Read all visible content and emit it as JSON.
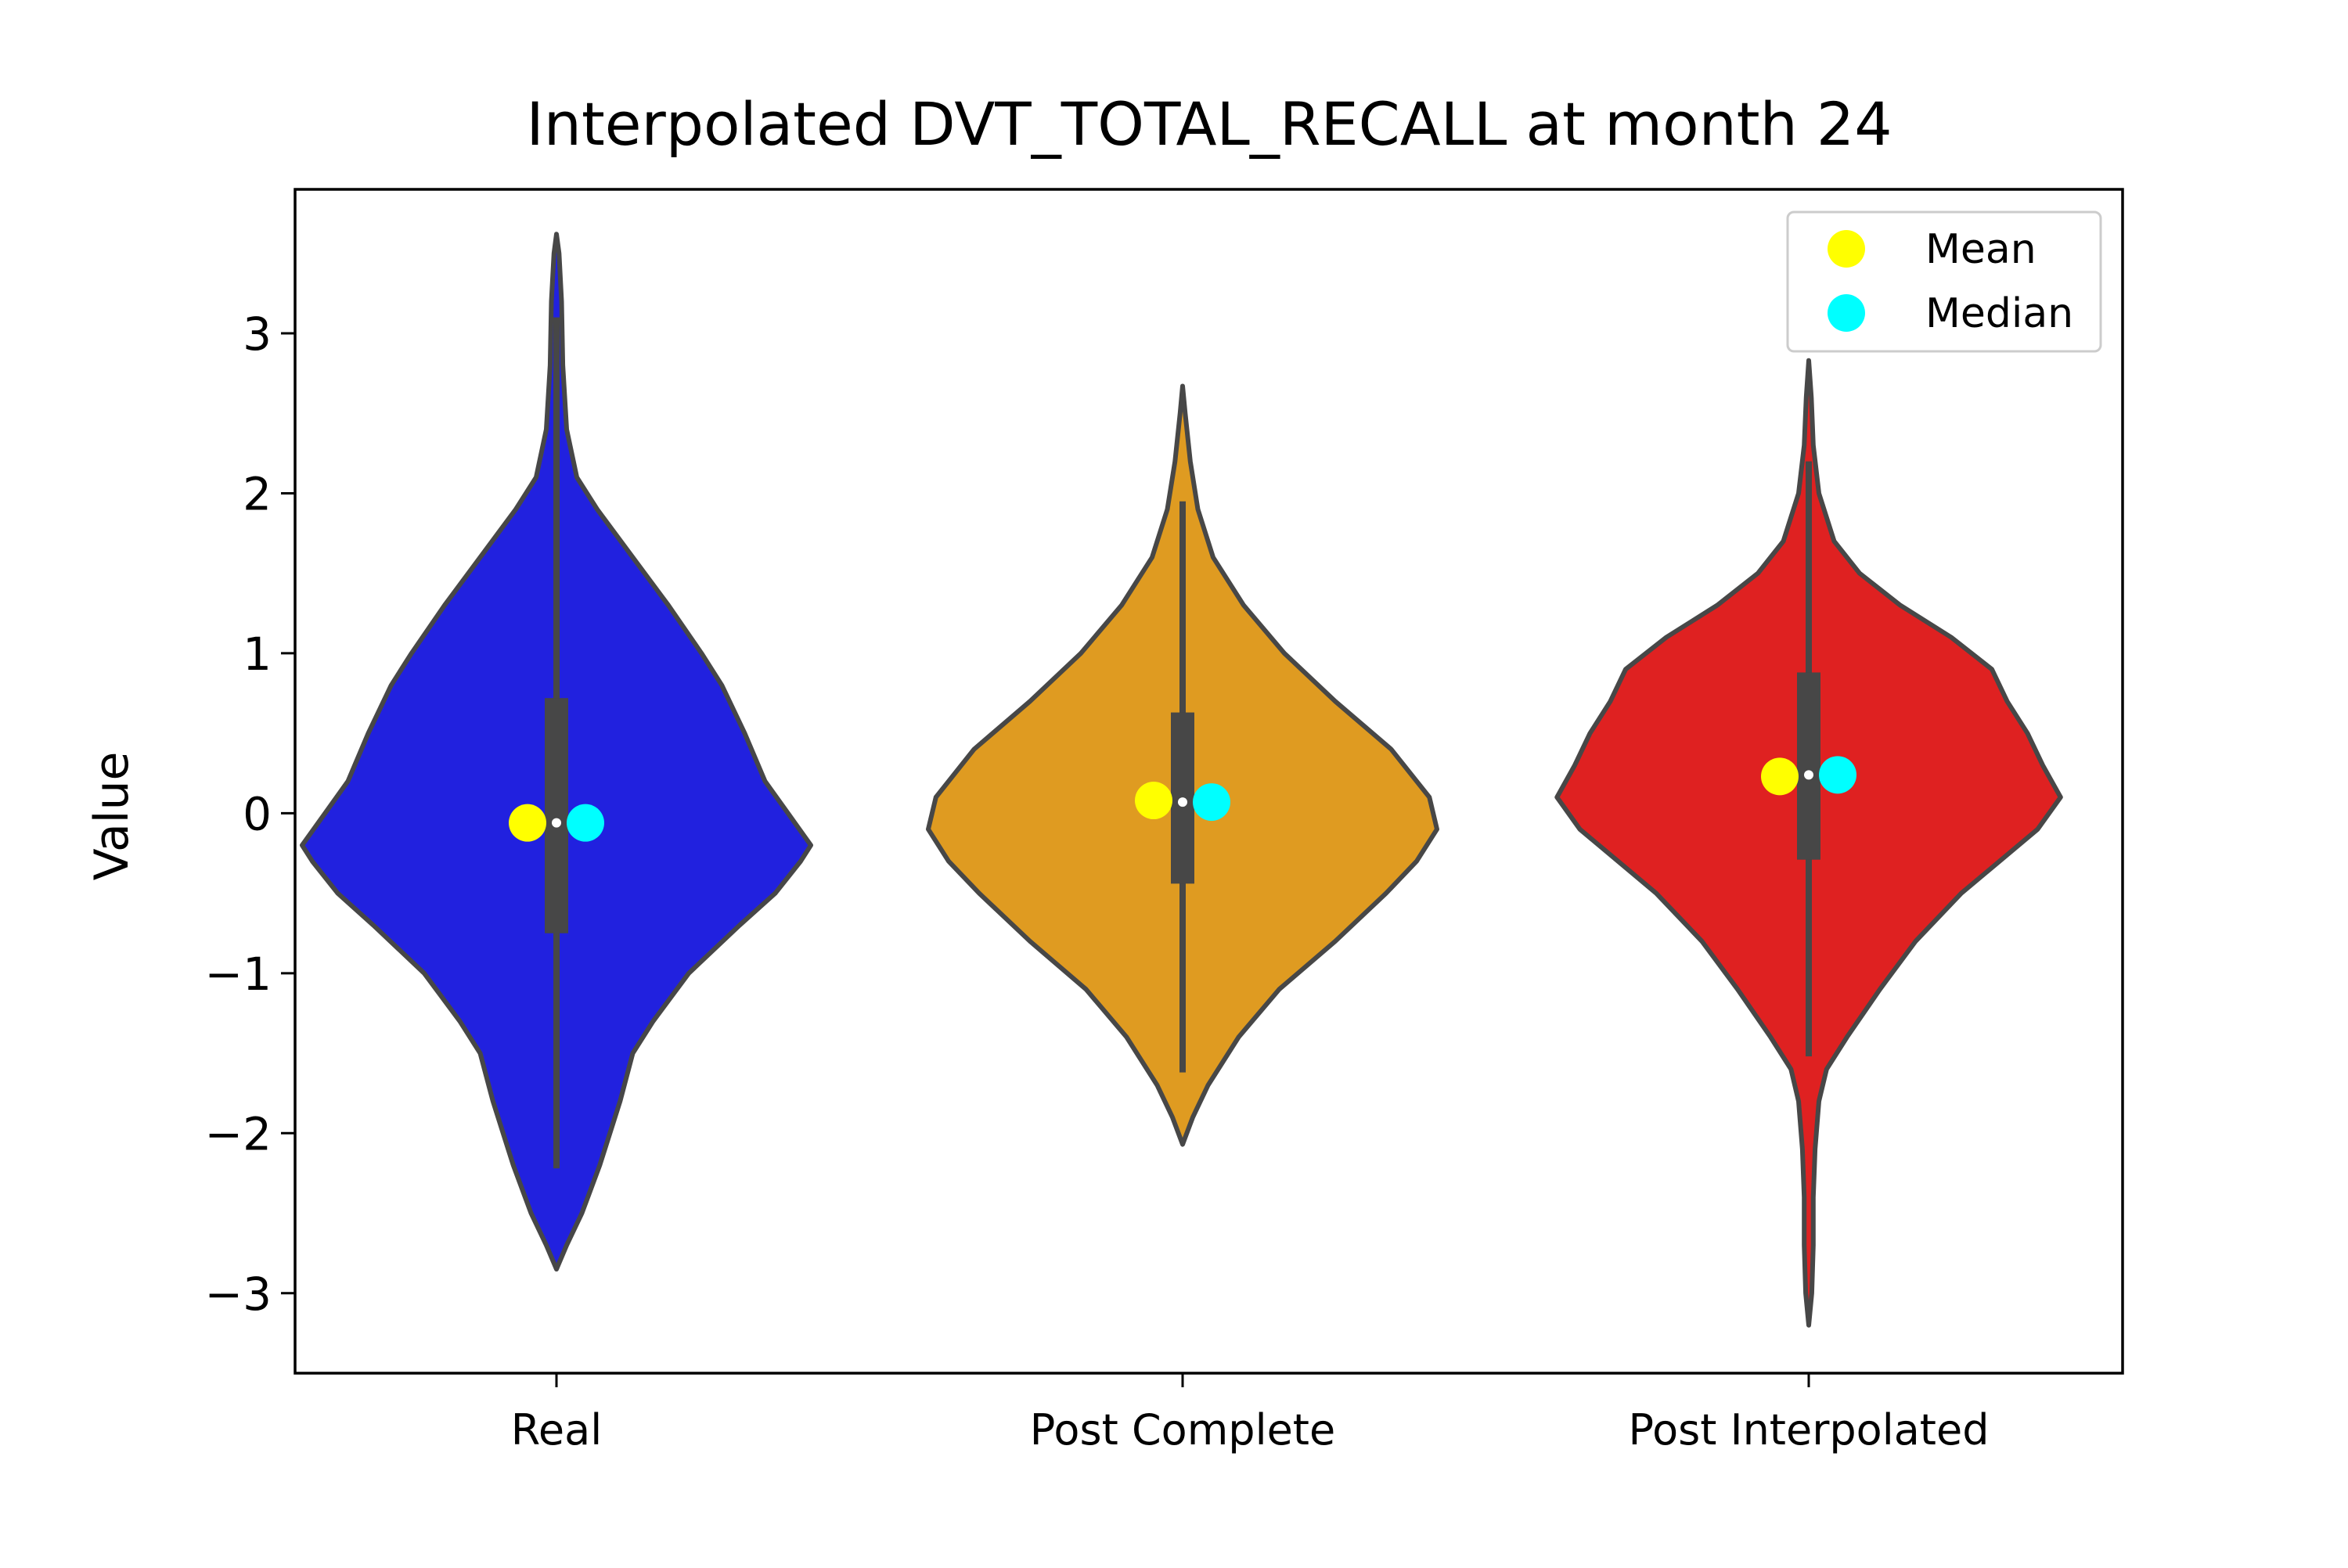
{
  "chart_data": {
    "type": "violin",
    "title": "Interpolated DVT_TOTAL_RECALL at month 24",
    "xlabel": "",
    "ylabel": "Value",
    "ylim": [
      -3.5,
      3.9
    ],
    "yticks": [
      -3,
      -2,
      -1,
      0,
      1,
      2,
      3
    ],
    "ytick_labels": [
      "−3",
      "−2",
      "−1",
      "0",
      "1",
      "2",
      "3"
    ],
    "categories": [
      "Real",
      "Post Complete",
      "Post Interpolated"
    ],
    "legend": {
      "position": "top-right",
      "entries": [
        {
          "label": "Mean",
          "color": "#ffff00"
        },
        {
          "label": "Median",
          "color": "#00ffff"
        }
      ]
    },
    "colors": {
      "Real": "#2121df",
      "Post Complete": "#df9b21",
      "Post Interpolated": "#df2121",
      "outline": "#474747",
      "mean": "#ffff00",
      "median": "#00ffff"
    },
    "violins": [
      {
        "name": "Real",
        "min": -2.85,
        "max": 3.62,
        "q1": -0.75,
        "median": -0.06,
        "q3": 0.72,
        "whisker_low": -2.22,
        "whisker_high": 3.1,
        "mean": -0.06,
        "median_marker": -0.06,
        "density": [
          [
            -2.85,
            0.0
          ],
          [
            -2.7,
            0.04
          ],
          [
            -2.5,
            0.1
          ],
          [
            -2.2,
            0.17
          ],
          [
            -2.0,
            0.21
          ],
          [
            -1.8,
            0.25
          ],
          [
            -1.5,
            0.3
          ],
          [
            -1.3,
            0.38
          ],
          [
            -1.0,
            0.52
          ],
          [
            -0.7,
            0.72
          ],
          [
            -0.5,
            0.86
          ],
          [
            -0.3,
            0.96
          ],
          [
            -0.2,
            1.0
          ],
          [
            0.0,
            0.91
          ],
          [
            0.2,
            0.82
          ],
          [
            0.5,
            0.74
          ],
          [
            0.8,
            0.65
          ],
          [
            1.0,
            0.57
          ],
          [
            1.3,
            0.44
          ],
          [
            1.6,
            0.3
          ],
          [
            1.9,
            0.16
          ],
          [
            2.1,
            0.08
          ],
          [
            2.4,
            0.04
          ],
          [
            2.8,
            0.025
          ],
          [
            3.2,
            0.02
          ],
          [
            3.5,
            0.01
          ],
          [
            3.62,
            0.0
          ]
        ]
      },
      {
        "name": "Post Complete",
        "min": -2.07,
        "max": 2.67,
        "q1": -0.44,
        "median": 0.07,
        "q3": 0.63,
        "whisker_low": -1.62,
        "whisker_high": 1.95,
        "mean": 0.08,
        "median_marker": 0.07,
        "density": [
          [
            -2.07,
            0.0
          ],
          [
            -1.9,
            0.04
          ],
          [
            -1.7,
            0.1
          ],
          [
            -1.4,
            0.22
          ],
          [
            -1.1,
            0.38
          ],
          [
            -0.8,
            0.6
          ],
          [
            -0.5,
            0.8
          ],
          [
            -0.3,
            0.92
          ],
          [
            -0.1,
            1.0
          ],
          [
            0.1,
            0.97
          ],
          [
            0.4,
            0.82
          ],
          [
            0.7,
            0.6
          ],
          [
            1.0,
            0.4
          ],
          [
            1.3,
            0.24
          ],
          [
            1.6,
            0.12
          ],
          [
            1.9,
            0.06
          ],
          [
            2.2,
            0.03
          ],
          [
            2.5,
            0.01
          ],
          [
            2.67,
            0.0
          ]
        ]
      },
      {
        "name": "Post Interpolated",
        "min": -3.2,
        "max": 2.83,
        "q1": -0.29,
        "median": 0.24,
        "q3": 0.88,
        "whisker_low": -1.52,
        "whisker_high": 2.2,
        "mean": 0.23,
        "median_marker": 0.24,
        "density": [
          [
            -3.2,
            0.0
          ],
          [
            -3.0,
            0.012
          ],
          [
            -2.7,
            0.018
          ],
          [
            -2.4,
            0.018
          ],
          [
            -2.1,
            0.025
          ],
          [
            -1.8,
            0.04
          ],
          [
            -1.6,
            0.07
          ],
          [
            -1.4,
            0.15
          ],
          [
            -1.1,
            0.28
          ],
          [
            -0.8,
            0.42
          ],
          [
            -0.5,
            0.6
          ],
          [
            -0.3,
            0.75
          ],
          [
            -0.1,
            0.9
          ],
          [
            0.1,
            0.99
          ],
          [
            0.3,
            0.92
          ],
          [
            0.5,
            0.86
          ],
          [
            0.7,
            0.78
          ],
          [
            0.9,
            0.72
          ],
          [
            1.1,
            0.56
          ],
          [
            1.3,
            0.36
          ],
          [
            1.5,
            0.2
          ],
          [
            1.7,
            0.1
          ],
          [
            2.0,
            0.04
          ],
          [
            2.3,
            0.018
          ],
          [
            2.6,
            0.01
          ],
          [
            2.83,
            0.0
          ]
        ]
      }
    ]
  }
}
